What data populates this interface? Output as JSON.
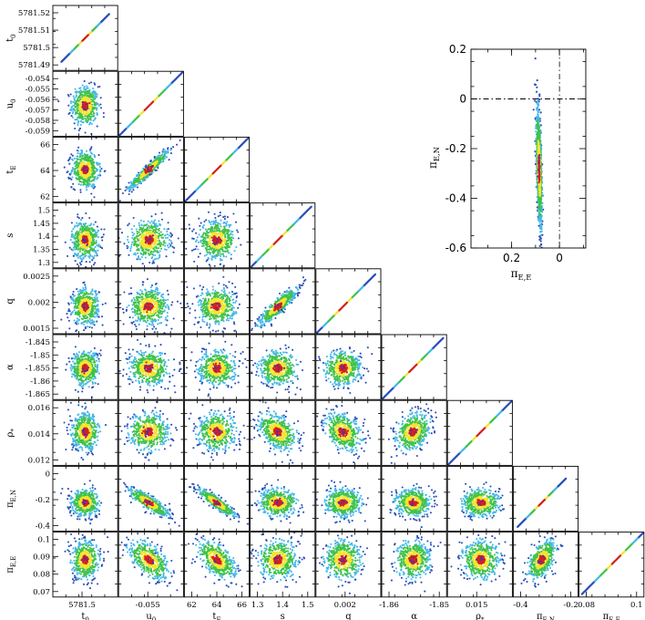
{
  "chart_data": [
    {
      "type": "scatter",
      "kind": "corner-posterior",
      "parameters": [
        "t0",
        "u0",
        "tE",
        "s",
        "q",
        "alpha",
        "rho*",
        "piE,N",
        "piE,E"
      ],
      "labels": {
        "t0": "t₀",
        "u0": "u₀",
        "tE": "tₑ",
        "s": "s",
        "q": "q",
        "alpha": "α",
        "rho*": "ρ*",
        "piE,N": "πE,N",
        "piE,E": "πE,E"
      },
      "display_labels": {
        "t0": [
          "t",
          "0"
        ],
        "u0": [
          "u",
          "0"
        ],
        "tE": [
          "t",
          "E"
        ],
        "s": [
          "s",
          ""
        ],
        "q": [
          "q",
          ""
        ],
        "alpha": [
          "α",
          ""
        ],
        "rho*": [
          "ρ",
          "*"
        ],
        "piE,N": [
          "π",
          "E,N"
        ],
        "piE,E": [
          "π",
          "E,E"
        ]
      },
      "ranges": {
        "t0": [
          5781.483,
          5781.527
        ],
        "u0": [
          -0.0595,
          -0.0535
        ],
        "tE": [
          60.8,
          66.8
        ],
        "s": [
          1.28,
          1.56
        ],
        "q": [
          0.00125,
          0.00285
        ],
        "alpha": [
          -1.8685,
          -1.8415
        ],
        "rho*": [
          0.0107,
          0.0171
        ],
        "piE,N": [
          -0.64,
          0.18
        ],
        "piE,E": [
          0.064,
          0.1015
        ]
      },
      "y_ticks": {
        "t0": [
          "5781.52",
          "5781.51",
          "5781.5",
          "5781.49"
        ],
        "u0": [
          "-0.054",
          "-0.055",
          "-0.056",
          "-0.057",
          "-0.058",
          "-0.059"
        ],
        "tE": [
          "66",
          "64",
          "62"
        ],
        "s": [
          "1.5",
          "1.45",
          "1.4",
          "1.35",
          "1.3"
        ],
        "q": [
          "0.0025",
          "0.002",
          "0.0015"
        ],
        "alpha": [
          "-1.845",
          "-1.85",
          "-1.855",
          "-1.86",
          "-1.865"
        ],
        "rho*": [
          "0.016",
          "0.014",
          "0.012"
        ],
        "piE,N": [
          "0",
          "-0.2",
          "-0.4"
        ],
        "piE,E": [
          "0.1",
          "0.09",
          "0.08",
          "0.07"
        ]
      },
      "x_ticks": {
        "t0": [
          "5781.5"
        ],
        "u0": [
          "-0.055"
        ],
        "tE": [
          "62",
          "64",
          "66"
        ],
        "s": [
          "1.3",
          "1.4",
          "1.5"
        ],
        "q": [
          "0.002"
        ],
        "alpha": [
          "-1.86",
          "-1.85"
        ],
        "rho*": [
          "0.015"
        ],
        "piE,N": [
          "-0.4",
          "-0.2"
        ],
        "piE,E": [
          "0.08",
          "0.1"
        ]
      },
      "best_fit": {
        "t0": 5781.505,
        "u0": -0.0567,
        "tE": 63.8,
        "s": 1.4,
        "q": 0.00192,
        "alpha": -1.8555,
        "rho*": 0.014,
        "piE,N": -0.28,
        "piE,E": 0.0855
      },
      "widths_sigma": {
        "t0": 0.0045,
        "u0": 0.0009,
        "tE": 0.85,
        "s": 0.04,
        "q": 0.00022,
        "alpha": 0.0035,
        "rho*": 0.0009,
        "piE,N": 0.085,
        "piE,E": 0.0055
      },
      "correlations": [
        {
          "pair": [
            "u0",
            "tE"
          ],
          "r": 0.95
        },
        {
          "pair": [
            "s",
            "q"
          ],
          "r": 0.9
        },
        {
          "pair": [
            "u0",
            "piE,N"
          ],
          "r": -0.85
        },
        {
          "pair": [
            "tE",
            "piE,N"
          ],
          "r": -0.9
        },
        {
          "pair": [
            "s",
            "rho*"
          ],
          "r": -0.4
        },
        {
          "pair": [
            "q",
            "rho*"
          ],
          "r": -0.35
        },
        {
          "pair": [
            "alpha",
            "rho*"
          ],
          "r": 0.3
        },
        {
          "pair": [
            "u0",
            "piE,E"
          ],
          "r": -0.55
        },
        {
          "pair": [
            "tE",
            "piE,E"
          ],
          "r": -0.55
        },
        {
          "pair": [
            "piE,N",
            "piE,E"
          ],
          "r": 0.5
        }
      ],
      "color_scale": [
        "red",
        "yellow",
        "green",
        "light blue",
        "blue"
      ],
      "diagonal": "parameter vs itself (straight line)"
    },
    {
      "type": "scatter",
      "kind": "parallax-plane",
      "xlabel": [
        "π",
        "E,E"
      ],
      "ylabel": [
        "π",
        "E,N"
      ],
      "x_ticks": [
        "0.2",
        "0"
      ],
      "y_ticks": [
        "0.2",
        "0",
        "-0.2",
        "-0.4",
        "-0.6"
      ],
      "xlim": [
        0.37,
        -0.11
      ],
      "ylim": [
        -0.6,
        0.2
      ],
      "reference_lines": {
        "x": 0,
        "y": 0
      }
    }
  ],
  "colors": {
    "red": "#d42020",
    "yellow": "#f2e430",
    "green": "#3fc24a",
    "light_blue": "#44b8e8",
    "blue": "#2a4fb8",
    "purple": "#5a2ca0"
  }
}
